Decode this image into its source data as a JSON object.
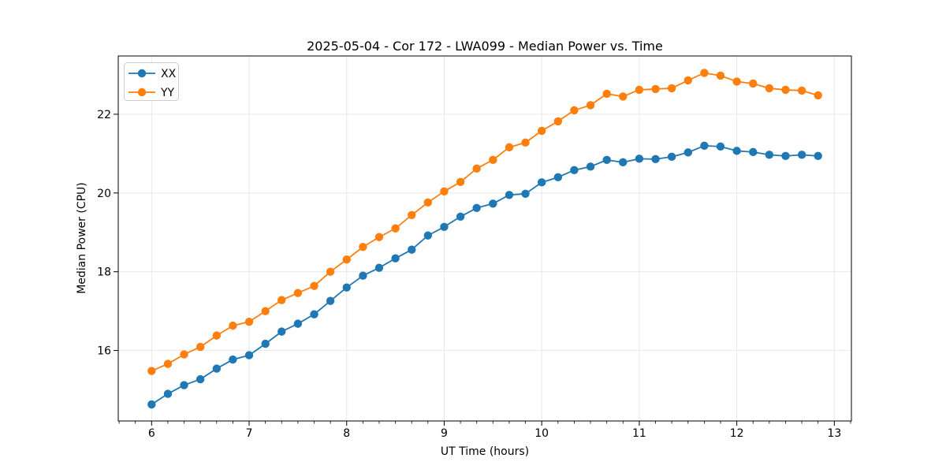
{
  "chart_data": {
    "type": "line",
    "title": "2025-05-04 - Cor 172 - LWA099 - Median Power vs. Time",
    "xlabel": "UT Time (hours)",
    "ylabel": "Median Power (CPU)",
    "xlim": [
      5.658,
      13.175
    ],
    "ylim": [
      14.21,
      23.48
    ],
    "xticks": [
      6,
      7,
      8,
      9,
      10,
      11,
      12,
      13
    ],
    "yticks": [
      16,
      18,
      20,
      22
    ],
    "x_minor_interval": 0.16667,
    "grid": true,
    "grid_color": "#e6e6e6",
    "spine_color": "#000000",
    "legend_position": "upper left",
    "marker": "circle",
    "x": [
      6.0,
      6.167,
      6.333,
      6.5,
      6.667,
      6.833,
      7.0,
      7.167,
      7.333,
      7.5,
      7.667,
      7.833,
      8.0,
      8.167,
      8.333,
      8.5,
      8.667,
      8.833,
      9.0,
      9.167,
      9.333,
      9.5,
      9.667,
      9.833,
      10.0,
      10.167,
      10.333,
      10.5,
      10.667,
      10.833,
      11.0,
      11.167,
      11.333,
      11.5,
      11.667,
      11.833,
      12.0,
      12.167,
      12.333,
      12.5,
      12.667,
      12.833
    ],
    "series": [
      {
        "name": "XX",
        "color": "#1f77b4",
        "values": [
          14.63,
          14.9,
          15.12,
          15.27,
          15.54,
          15.77,
          15.88,
          16.17,
          16.48,
          16.68,
          16.92,
          17.26,
          17.6,
          17.9,
          18.1,
          18.34,
          18.56,
          18.92,
          19.14,
          19.4,
          19.62,
          19.73,
          19.95,
          19.98,
          20.27,
          20.4,
          20.58,
          20.67,
          20.84,
          20.78,
          20.87,
          20.86,
          20.92,
          21.03,
          21.2,
          21.18,
          21.07,
          21.04,
          20.97,
          20.94,
          20.97,
          20.94
        ]
      },
      {
        "name": "YY",
        "color": "#ff7f0e",
        "values": [
          15.48,
          15.66,
          15.9,
          16.09,
          16.38,
          16.63,
          16.73,
          17.0,
          17.28,
          17.46,
          17.64,
          18.0,
          18.31,
          18.63,
          18.88,
          19.1,
          19.44,
          19.76,
          20.04,
          20.28,
          20.62,
          20.84,
          21.16,
          21.28,
          21.58,
          21.82,
          22.1,
          22.23,
          22.52,
          22.45,
          22.62,
          22.64,
          22.66,
          22.86,
          23.05,
          22.98,
          22.83,
          22.78,
          22.66,
          22.62,
          22.6,
          22.48
        ]
      }
    ]
  }
}
